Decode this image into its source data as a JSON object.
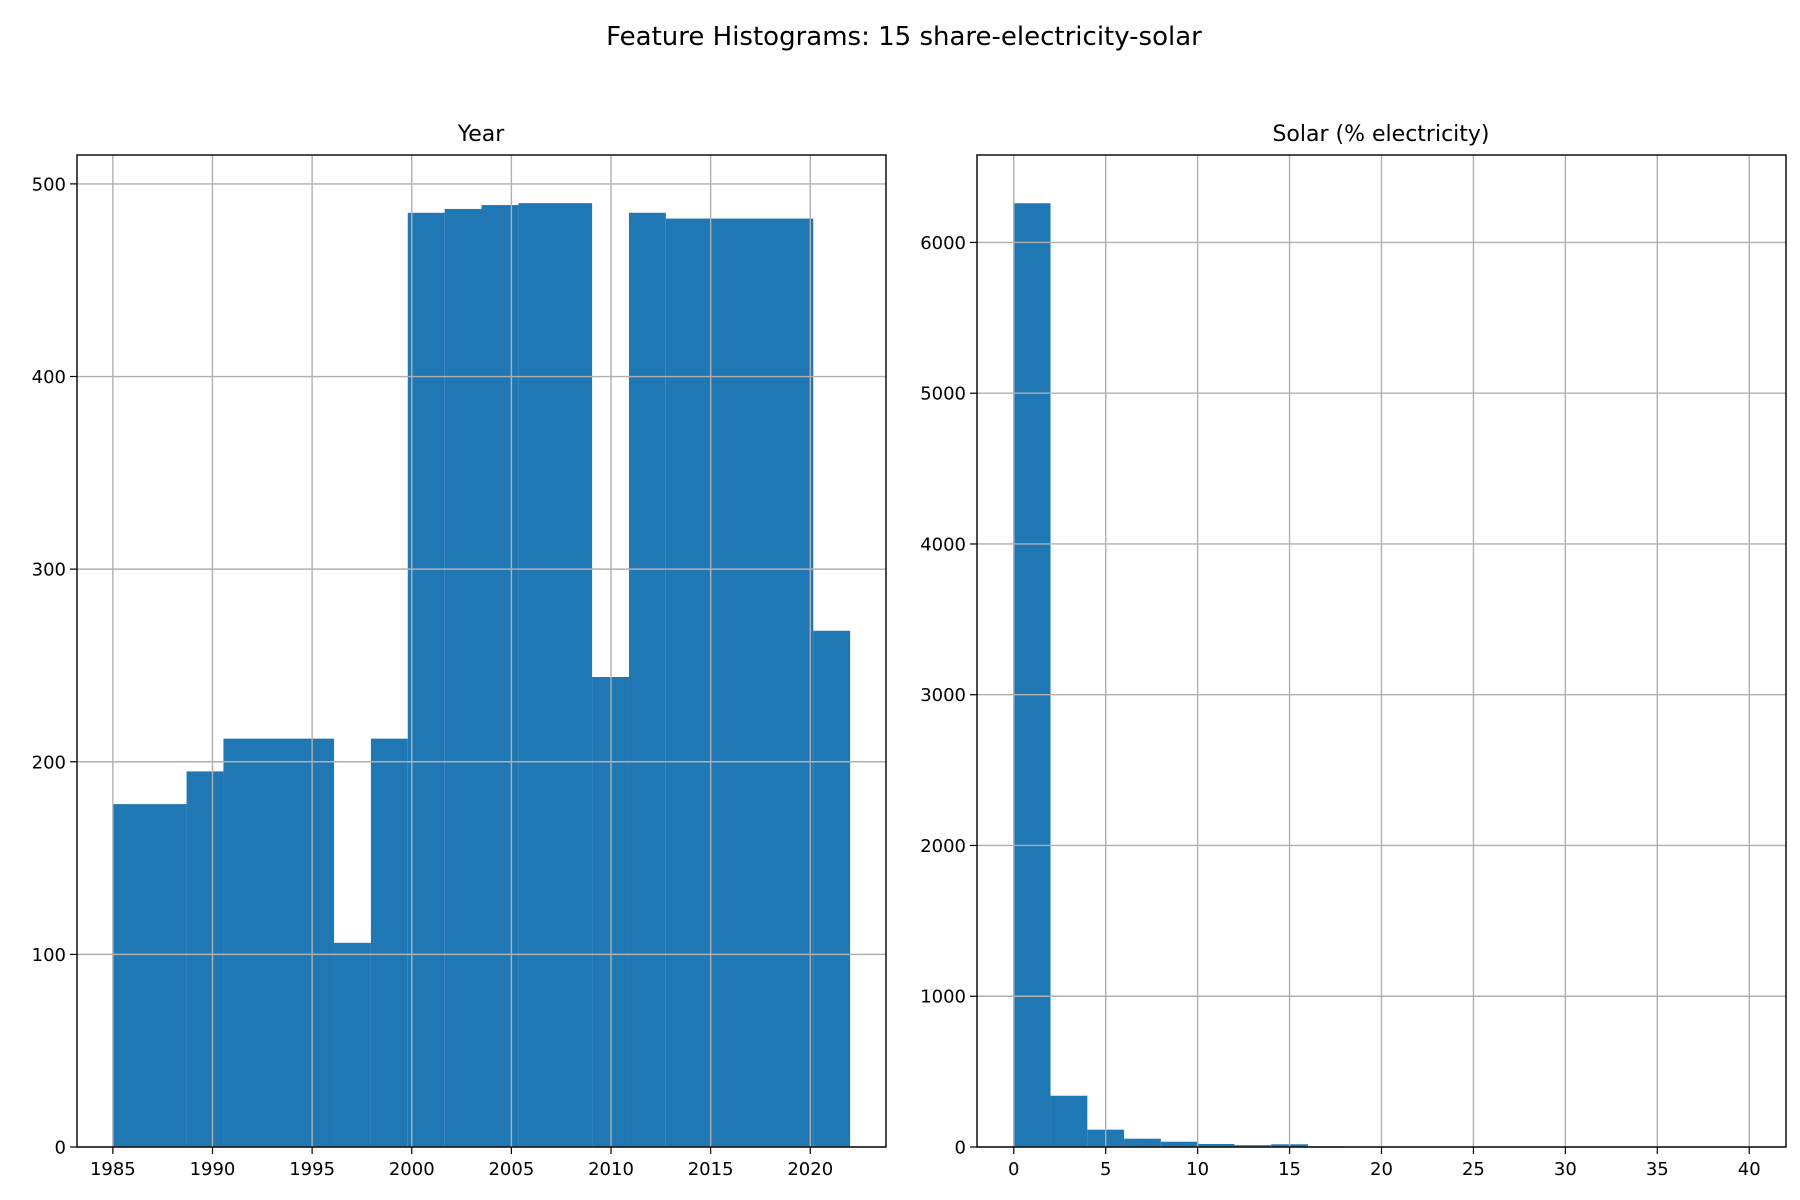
{
  "figure": {
    "suptitle": "Feature Histograms: 15 share-electricity-solar"
  },
  "colors": {
    "bar": "#1f77b4",
    "grid": "#b0b0b0",
    "axis": "#000000"
  },
  "chart_data": [
    {
      "type": "bar",
      "title": "Year",
      "xlabel": "",
      "ylabel": "",
      "xlim": [
        1983.2,
        2023.8
      ],
      "ylim": [
        0,
        515
      ],
      "xticks": [
        1985,
        1990,
        1995,
        2000,
        2005,
        2010,
        2015,
        2020
      ],
      "yticks": [
        0,
        100,
        200,
        300,
        400,
        500
      ],
      "grid": true,
      "bins": [
        {
          "start": 1985.0,
          "end": 1988.7,
          "count": 178
        },
        {
          "start": 1988.7,
          "end": 1990.55,
          "count": 195
        },
        {
          "start": 1990.55,
          "end": 1996.1,
          "count": 212
        },
        {
          "start": 1996.1,
          "end": 1997.95,
          "count": 106
        },
        {
          "start": 1997.95,
          "end": 1999.8,
          "count": 212
        },
        {
          "start": 1999.8,
          "end": 2001.65,
          "count": 485
        },
        {
          "start": 2001.65,
          "end": 2003.5,
          "count": 487
        },
        {
          "start": 2003.5,
          "end": 2005.35,
          "count": 489
        },
        {
          "start": 2005.35,
          "end": 2009.05,
          "count": 490
        },
        {
          "start": 2009.05,
          "end": 2010.9,
          "count": 244
        },
        {
          "start": 2010.9,
          "end": 2012.75,
          "count": 485
        },
        {
          "start": 2012.75,
          "end": 2020.15,
          "count": 482
        },
        {
          "start": 2020.15,
          "end": 2022.0,
          "count": 268
        }
      ]
    },
    {
      "type": "bar",
      "title": "Solar (% electricity)",
      "xlabel": "",
      "ylabel": "",
      "xlim": [
        -2.0,
        42.0
      ],
      "ylim": [
        0,
        6580
      ],
      "xticks": [
        0,
        5,
        10,
        15,
        20,
        25,
        30,
        35,
        40
      ],
      "yticks": [
        0,
        1000,
        2000,
        3000,
        4000,
        5000,
        6000
      ],
      "grid": true,
      "bins": [
        {
          "start": 0,
          "end": 2,
          "count": 6260
        },
        {
          "start": 2,
          "end": 4,
          "count": 340
        },
        {
          "start": 4,
          "end": 6,
          "count": 115
        },
        {
          "start": 6,
          "end": 8,
          "count": 55
        },
        {
          "start": 8,
          "end": 10,
          "count": 35
        },
        {
          "start": 10,
          "end": 12,
          "count": 20
        },
        {
          "start": 12,
          "end": 14,
          "count": 12
        },
        {
          "start": 14,
          "end": 16,
          "count": 18
        },
        {
          "start": 16,
          "end": 18,
          "count": 5
        },
        {
          "start": 18,
          "end": 20,
          "count": 3
        },
        {
          "start": 20,
          "end": 22,
          "count": 2
        },
        {
          "start": 22,
          "end": 24,
          "count": 2
        },
        {
          "start": 24,
          "end": 26,
          "count": 1
        },
        {
          "start": 26,
          "end": 28,
          "count": 1
        },
        {
          "start": 28,
          "end": 30,
          "count": 1
        },
        {
          "start": 30,
          "end": 32,
          "count": 1
        },
        {
          "start": 32,
          "end": 34,
          "count": 1
        },
        {
          "start": 34,
          "end": 36,
          "count": 0
        },
        {
          "start": 36,
          "end": 38,
          "count": 1
        },
        {
          "start": 38,
          "end": 40,
          "count": 1
        }
      ]
    }
  ]
}
